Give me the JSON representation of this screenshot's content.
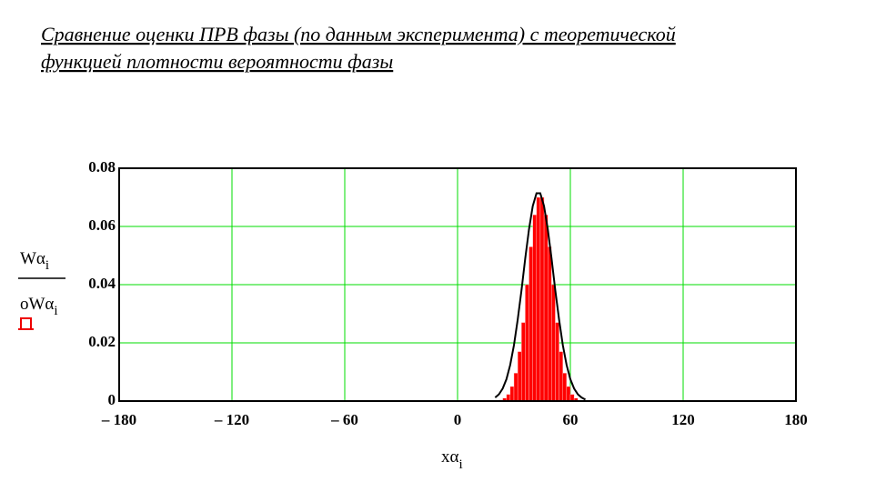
{
  "chart_data": {
    "type": "combo",
    "title": [
      "Сравнение оценки ПРВ фазы (по данным эксперимента) с теоретической",
      "функцией плотности вероятности фазы "
    ],
    "y_label": {
      "numerator": {
        "text": "Wα",
        "sub": "i"
      },
      "denominator": {
        "text": "oWα",
        "sub": "i"
      }
    },
    "x_label": {
      "text": "xα",
      "sub": "i"
    },
    "xlim": [
      -180,
      180
    ],
    "ylim": [
      0,
      0.08
    ],
    "xticks": [
      {
        "value": -180,
        "label": "– 180"
      },
      {
        "value": -120,
        "label": "– 120"
      },
      {
        "value": -60,
        "label": "– 60"
      },
      0,
      60,
      120,
      180
    ],
    "yticks": [
      0,
      0.02,
      0.04,
      0.06,
      0.08
    ],
    "grid": true,
    "grid_color": "#00dd00",
    "series": [
      {
        "type": "histogram",
        "color": "#ff0000",
        "bins": [
          22,
          24,
          26,
          28,
          30,
          32,
          34,
          36,
          38,
          40,
          42,
          44,
          46,
          48,
          50,
          52,
          54,
          56,
          58,
          60,
          62,
          64
        ],
        "values": [
          0.0004,
          0.001,
          0.0023,
          0.005,
          0.0096,
          0.017,
          0.027,
          0.04,
          0.053,
          0.064,
          0.07,
          0.07,
          0.064,
          0.053,
          0.04,
          0.027,
          0.017,
          0.0096,
          0.005,
          0.0023,
          0.001
        ]
      },
      {
        "type": "line",
        "color": "#000000",
        "x": [
          20,
          22,
          24,
          26,
          28,
          30,
          32,
          34,
          36,
          38,
          40,
          42,
          44,
          46,
          48,
          50,
          52,
          54,
          56,
          58,
          60,
          62,
          64,
          66,
          68
        ],
        "values": [
          0.0012,
          0.0023,
          0.0043,
          0.0075,
          0.0124,
          0.0192,
          0.028,
          0.038,
          0.049,
          0.059,
          0.067,
          0.0714,
          0.0714,
          0.067,
          0.059,
          0.049,
          0.038,
          0.028,
          0.0192,
          0.0124,
          0.0075,
          0.0043,
          0.0023,
          0.0012,
          0.0005
        ]
      }
    ]
  }
}
